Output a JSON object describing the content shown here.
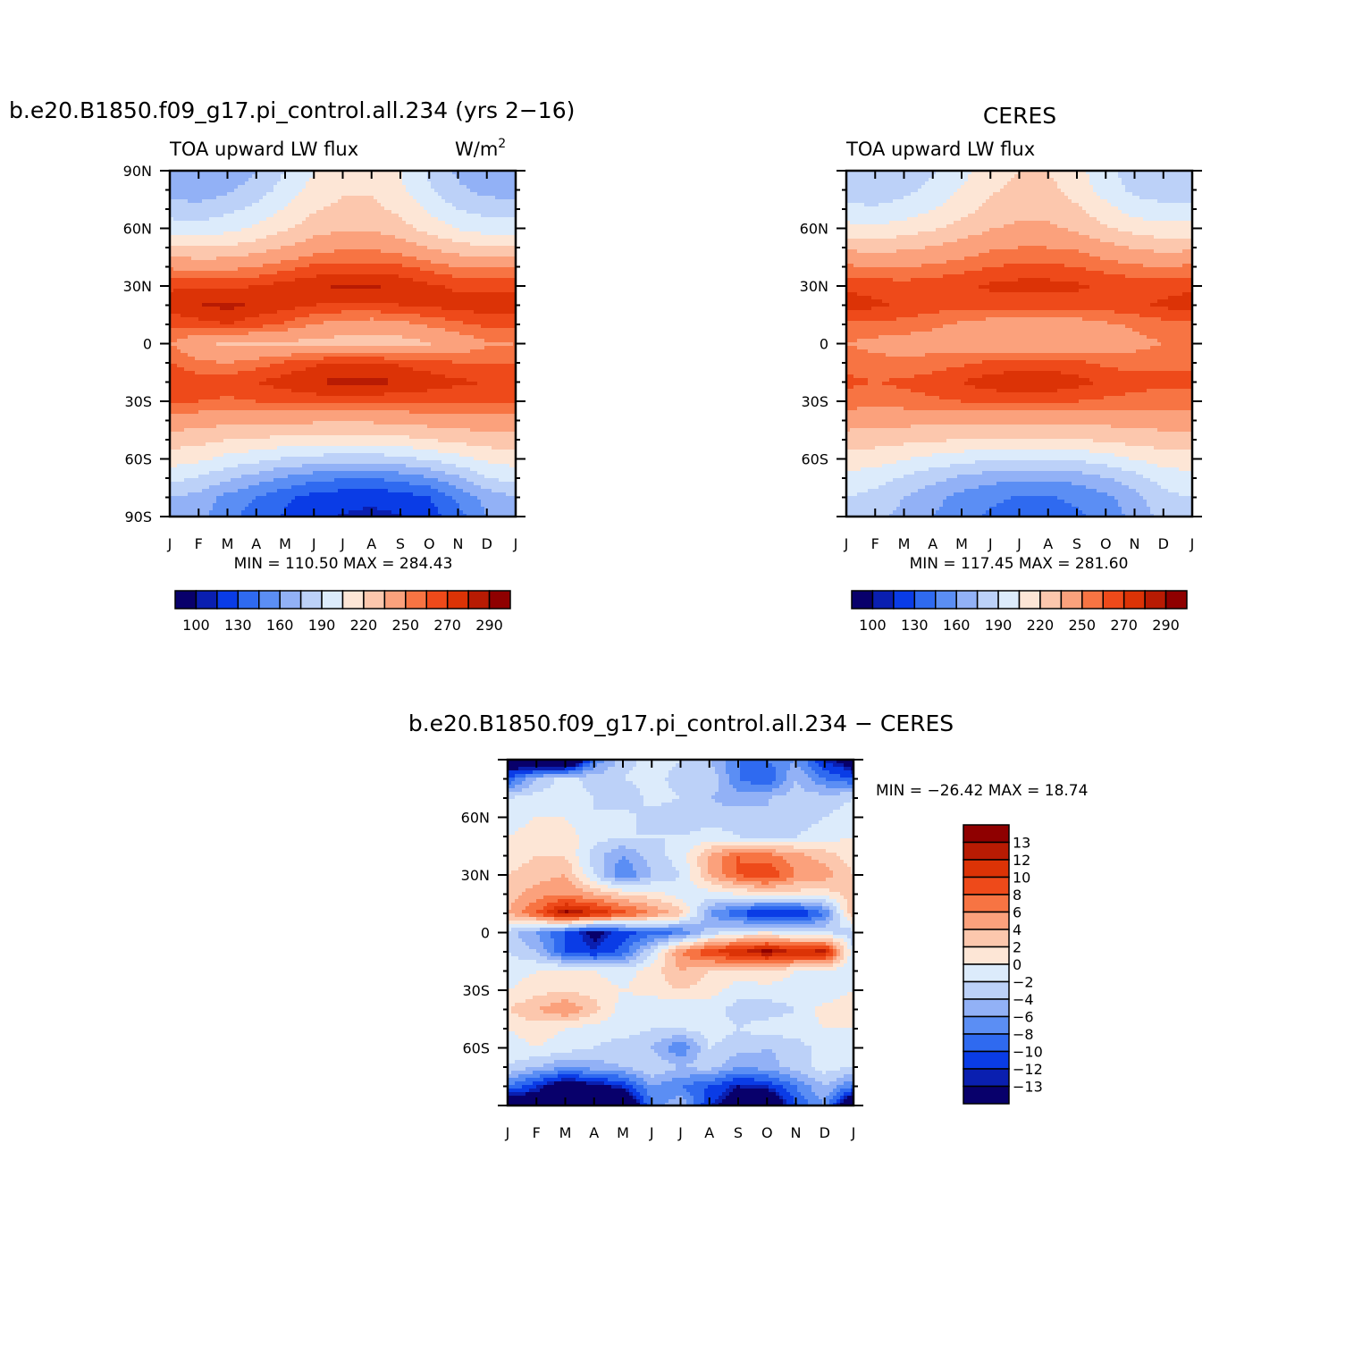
{
  "figure": {
    "panel_model": {
      "title": "b.e20.B1850.f09_g17.pi_control.all.234 (yrs 2−16)",
      "left_string": "TOA upward LW flux",
      "right_string": "W/m",
      "right_string_sup": "2",
      "minmax": "MIN = 110.50 MAX = 284.43"
    },
    "panel_obs": {
      "title": "CERES",
      "left_string": "TOA upward LW flux",
      "minmax": "MIN = 117.45 MAX = 281.60"
    },
    "panel_diff": {
      "title": "b.e20.B1850.f09_g17.pi_control.all.234 − CERES",
      "minmax": "MIN = −26.42 MAX =  18.74"
    },
    "month_labels": [
      "J",
      "F",
      "M",
      "A",
      "M",
      "J",
      "J",
      "A",
      "S",
      "O",
      "N",
      "D",
      "J"
    ],
    "lat_labels_model": [
      "90N",
      "60N",
      "30N",
      "0",
      "30S",
      "60S",
      "90S"
    ],
    "lat_labels_obs": [
      "60N",
      "30N",
      "0",
      "30S",
      "60S"
    ],
    "lat_labels_diff": [
      "60N",
      "30N",
      "0",
      "30S",
      "60S"
    ],
    "colorbar_abs_labels": [
      "100",
      "130",
      "160",
      "190",
      "220",
      "250",
      "270",
      "290"
    ],
    "colorbar_diff_labels": [
      "13",
      "12",
      "10",
      "8",
      "6",
      "4",
      "2",
      "0",
      "−2",
      "−4",
      "−6",
      "−8",
      "−10",
      "−12",
      "−13"
    ]
  },
  "colors": {
    "abs_palette": [
      "#08006b",
      "#0a1fb0",
      "#0a3ce6",
      "#2f6af0",
      "#5b8ef4",
      "#92b1f6",
      "#bcd1f8",
      "#dcebfb",
      "#fde6d6",
      "#fcc7ad",
      "#fba17c",
      "#f77443",
      "#ee4a1a",
      "#dc3306",
      "#b81b03",
      "#8f0000"
    ],
    "diff_palette": [
      "#8f0000",
      "#b81b03",
      "#dc3306",
      "#ee4a1a",
      "#f77443",
      "#fba17c",
      "#fcc7ad",
      "#fde6d6",
      "#dcebfb",
      "#bcd1f8",
      "#92b1f6",
      "#5b8ef4",
      "#2f6af0",
      "#0a3ce6",
      "#0a1fb0",
      "#08006b"
    ]
  },
  "chart_data": [
    {
      "type": "heatmap",
      "title": "b.e20.B1850.f09_g17.pi_control.all.234 (yrs 2−16)",
      "subtitle": "TOA upward LW flux",
      "units": "W/m2",
      "x": [
        "J",
        "F",
        "M",
        "A",
        "M",
        "J",
        "J",
        "A",
        "S",
        "O",
        "N",
        "D",
        "J"
      ],
      "y": [
        -90,
        -80,
        -70,
        -60,
        -50,
        -40,
        -30,
        -20,
        -10,
        0,
        10,
        20,
        30,
        40,
        50,
        60,
        70,
        80,
        90
      ],
      "ylim": [
        -90,
        90
      ],
      "values": [
        [
          165,
          165,
          150,
          138,
          128,
          118,
          114,
          112,
          114,
          122,
          140,
          160,
          165
        ],
        [
          175,
          170,
          155,
          145,
          133,
          125,
          120,
          118,
          122,
          130,
          148,
          165,
          175
        ],
        [
          195,
          188,
          178,
          168,
          158,
          150,
          146,
          146,
          150,
          158,
          172,
          190,
          195
        ],
        [
          212,
          208,
          200,
          195,
          188,
          185,
          182,
          182,
          186,
          192,
          200,
          208,
          212
        ],
        [
          228,
          225,
          220,
          218,
          215,
          212,
          212,
          212,
          215,
          220,
          224,
          228,
          228
        ],
        [
          244,
          242,
          240,
          240,
          240,
          238,
          238,
          238,
          240,
          242,
          244,
          244,
          244
        ],
        [
          262,
          260,
          258,
          260,
          262,
          264,
          264,
          264,
          262,
          262,
          262,
          262,
          262
        ],
        [
          270,
          266,
          266,
          270,
          275,
          280,
          283,
          283,
          280,
          276,
          272,
          270,
          270
        ],
        [
          260,
          252,
          250,
          255,
          262,
          268,
          272,
          272,
          268,
          264,
          260,
          260,
          260
        ],
        [
          250,
          238,
          232,
          232,
          232,
          230,
          228,
          226,
          228,
          234,
          240,
          248,
          250
        ],
        [
          262,
          266,
          270,
          264,
          258,
          250,
          245,
          243,
          246,
          252,
          258,
          262,
          262
        ],
        [
          276,
          280,
          283,
          278,
          274,
          270,
          268,
          268,
          270,
          272,
          274,
          276,
          276
        ],
        [
          268,
          268,
          268,
          270,
          274,
          278,
          282,
          282,
          278,
          272,
          268,
          268,
          268
        ],
        [
          248,
          246,
          246,
          250,
          256,
          262,
          264,
          264,
          262,
          256,
          250,
          248,
          248
        ],
        [
          222,
          220,
          222,
          228,
          236,
          244,
          248,
          248,
          244,
          234,
          226,
          222,
          222
        ],
        [
          198,
          196,
          200,
          208,
          218,
          228,
          234,
          234,
          226,
          214,
          204,
          198,
          198
        ],
        [
          182,
          180,
          186,
          194,
          206,
          218,
          224,
          224,
          216,
          202,
          190,
          184,
          182
        ],
        [
          168,
          166,
          172,
          182,
          196,
          210,
          218,
          218,
          208,
          192,
          178,
          170,
          168
        ],
        [
          160,
          160,
          165,
          175,
          190,
          205,
          215,
          215,
          205,
          188,
          172,
          162,
          160
        ]
      ]
    },
    {
      "type": "heatmap",
      "title": "CERES",
      "subtitle": "TOA upward LW flux",
      "x": [
        "J",
        "F",
        "M",
        "A",
        "M",
        "J",
        "J",
        "A",
        "S",
        "O",
        "N",
        "D",
        "J"
      ],
      "y": [
        -90,
        -80,
        -70,
        -60,
        -50,
        -40,
        -30,
        -20,
        -10,
        0,
        10,
        20,
        30,
        40,
        50,
        60,
        70,
        80,
        90
      ],
      "ylim": [
        -90,
        90
      ],
      "values": [
        [
          185,
          180,
          170,
          160,
          150,
          142,
          138,
          138,
          142,
          150,
          165,
          180,
          185
        ],
        [
          190,
          185,
          175,
          165,
          155,
          148,
          144,
          144,
          148,
          156,
          170,
          186,
          190
        ],
        [
          200,
          196,
          188,
          180,
          172,
          166,
          162,
          162,
          166,
          174,
          184,
          196,
          200
        ],
        [
          214,
          212,
          206,
          200,
          196,
          192,
          190,
          190,
          192,
          198,
          206,
          212,
          214
        ],
        [
          228,
          226,
          224,
          222,
          220,
          218,
          218,
          218,
          220,
          222,
          226,
          228,
          228
        ],
        [
          242,
          240,
          240,
          240,
          240,
          240,
          240,
          240,
          240,
          240,
          242,
          242,
          242
        ],
        [
          256,
          254,
          256,
          258,
          260,
          262,
          262,
          262,
          260,
          258,
          256,
          256,
          256
        ],
        [
          262,
          260,
          262,
          265,
          270,
          276,
          278,
          278,
          274,
          268,
          264,
          262,
          262
        ],
        [
          258,
          254,
          252,
          255,
          258,
          262,
          264,
          264,
          262,
          258,
          256,
          258,
          258
        ],
        [
          250,
          246,
          244,
          244,
          242,
          240,
          238,
          238,
          240,
          244,
          246,
          250,
          250
        ],
        [
          258,
          258,
          256,
          252,
          248,
          244,
          242,
          242,
          244,
          248,
          252,
          256,
          258
        ],
        [
          275,
          272,
          268,
          265,
          264,
          264,
          264,
          264,
          264,
          265,
          268,
          272,
          275
        ],
        [
          268,
          266,
          264,
          266,
          268,
          272,
          274,
          274,
          272,
          268,
          266,
          266,
          268
        ],
        [
          252,
          250,
          250,
          252,
          256,
          260,
          262,
          262,
          260,
          256,
          252,
          250,
          252
        ],
        [
          232,
          230,
          232,
          236,
          242,
          248,
          250,
          250,
          248,
          240,
          234,
          230,
          232
        ],
        [
          210,
          208,
          212,
          218,
          226,
          234,
          238,
          238,
          232,
          222,
          214,
          210,
          210
        ],
        [
          194,
          192,
          196,
          204,
          214,
          224,
          230,
          230,
          222,
          210,
          198,
          194,
          194
        ],
        [
          182,
          180,
          186,
          194,
          206,
          218,
          224,
          224,
          214,
          198,
          186,
          182,
          182
        ],
        [
          176,
          176,
          180,
          188,
          200,
          212,
          220,
          220,
          210,
          194,
          182,
          178,
          176
        ]
      ]
    },
    {
      "type": "heatmap",
      "title": "b.e20.B1850.f09_g17.pi_control.all.234 − CERES",
      "x": [
        "J",
        "F",
        "M",
        "A",
        "M",
        "J",
        "J",
        "A",
        "S",
        "O",
        "N",
        "D",
        "J"
      ],
      "y": [
        -90,
        -80,
        -70,
        -60,
        -50,
        -40,
        -30,
        -20,
        -10,
        0,
        10,
        20,
        30,
        40,
        50,
        60,
        70,
        80,
        90
      ],
      "ylim": [
        -90,
        90
      ],
      "values": [
        [
          -20,
          -15,
          -20,
          -22,
          -20,
          -8,
          -4,
          -12,
          -15,
          -18,
          -10,
          -6,
          -20
        ],
        [
          -8,
          -12,
          -16,
          -14,
          -12,
          -6,
          -8,
          -10,
          -13,
          -12,
          -8,
          -4,
          -8
        ],
        [
          -2,
          -4,
          -6,
          -5,
          -4,
          -2,
          -4,
          -3,
          -6,
          -5,
          -3,
          -1,
          -2
        ],
        [
          -1,
          0,
          -1,
          -2,
          -3,
          -4,
          -8,
          -2,
          -3,
          -4,
          -3,
          -1,
          -1
        ],
        [
          0,
          1,
          0,
          -1,
          -1,
          -2,
          -2,
          -1,
          -2,
          -1,
          -1,
          0,
          0
        ],
        [
          2,
          4,
          6,
          3,
          -1,
          -2,
          -2,
          -1,
          -3,
          -3,
          -2,
          1,
          2
        ],
        [
          0,
          1,
          2,
          1,
          0,
          1,
          2,
          1,
          -1,
          -1,
          -1,
          -2,
          0
        ],
        [
          -1,
          0,
          1,
          0,
          -1,
          1,
          4,
          2,
          1,
          2,
          0,
          -1,
          -1
        ],
        [
          -2,
          -4,
          -10,
          -12,
          -9,
          -2,
          6,
          10,
          12,
          14,
          12,
          13,
          -2
        ],
        [
          -3,
          -6,
          -10,
          -14,
          -11,
          -9,
          -8,
          -3,
          -1,
          0,
          -2,
          -2,
          -3
        ],
        [
          4,
          8,
          14,
          12,
          9,
          6,
          3,
          -6,
          -10,
          -13,
          -13,
          -8,
          4
        ],
        [
          3,
          5,
          6,
          4,
          2,
          1,
          -1,
          -1,
          0,
          1,
          1,
          1,
          3
        ],
        [
          2,
          3,
          4,
          -2,
          -8,
          -4,
          -2,
          4,
          8,
          10,
          6,
          5,
          2
        ],
        [
          1,
          2,
          2,
          -3,
          -6,
          -3,
          -1,
          4,
          8,
          7,
          5,
          3,
          1
        ],
        [
          0,
          1,
          1,
          -1,
          -2,
          -2,
          -2,
          -1,
          -2,
          -3,
          -2,
          -1,
          0
        ],
        [
          -1,
          0,
          0,
          -2,
          -1,
          -3,
          -4,
          -3,
          -3,
          -4,
          -3,
          -2,
          -1
        ],
        [
          -2,
          -1,
          -1,
          -2,
          -4,
          -1,
          -2,
          -4,
          -5,
          -4,
          -3,
          -3,
          -2
        ],
        [
          -10,
          -4,
          -1,
          -3,
          -2,
          -1,
          -3,
          -2,
          -8,
          -10,
          -4,
          -8,
          -10
        ],
        [
          -16,
          -20,
          -22,
          -8,
          -3,
          -1,
          -2,
          -4,
          -8,
          -8,
          -6,
          -12,
          -16
        ]
      ]
    }
  ]
}
